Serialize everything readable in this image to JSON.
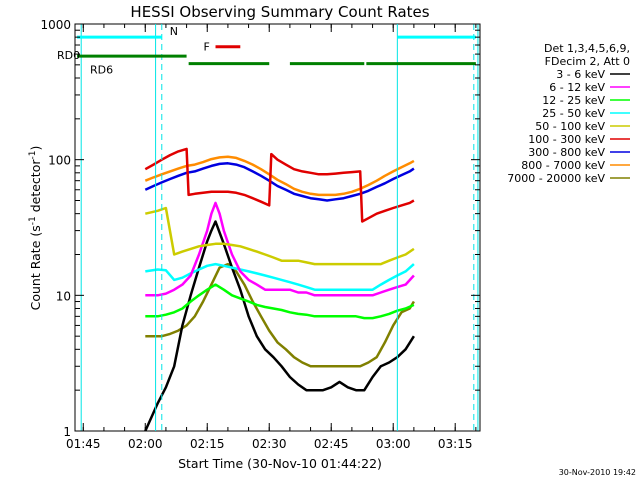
{
  "chart_data": {
    "type": "line",
    "title": "HESSI Observing Summary Count Rates",
    "xlabel": "Start Time (30-Nov-10 01:44:22)",
    "ylabel": "Count Rate (s",
    "ylabel_sup1": "-1",
    "ylabel_mid": " detector",
    "ylabel_sup2": "-1",
    "ylabel_end": ")",
    "y_scale": "log",
    "ylim": [
      1,
      1000
    ],
    "xlim_minutes": [
      -2,
      96
    ],
    "x_ticks": [
      {
        "label": "01:45",
        "minutes": 0
      },
      {
        "label": "02:00",
        "minutes": 15
      },
      {
        "label": "02:15",
        "minutes": 30
      },
      {
        "label": "02:30",
        "minutes": 45
      },
      {
        "label": "02:45",
        "minutes": 60
      },
      {
        "label": "03:00",
        "minutes": 75
      },
      {
        "label": "03:15",
        "minutes": 90
      }
    ],
    "y_ticks": [
      {
        "label": "1",
        "value": 1
      },
      {
        "label": "10",
        "value": 10
      },
      {
        "label": "100",
        "value": 100
      },
      {
        "label": "1000",
        "value": 1000
      }
    ],
    "legend_header": [
      "Det 1,3,4,5,6,9,",
      "FDecim 2, Att 0"
    ],
    "legend_placement": "right",
    "timestamp": "30-Nov-2010 19:42",
    "annotations": {
      "night": {
        "label": "N",
        "color": "#00ffff",
        "segments": [
          [
            -1.5,
            19
          ],
          [
            76,
            95
          ]
        ],
        "y": 800
      },
      "flare": {
        "label": "F",
        "color": "#e00000",
        "segments": [
          [
            32,
            38
          ]
        ],
        "y": 680
      },
      "rd0": {
        "label": "RD0",
        "color": "#008000",
        "segments": [
          [
            -1.5,
            25
          ]
        ],
        "y": 580
      },
      "rd6": {
        "label": "RD6",
        "color": "#008000",
        "segments": [
          [
            25.5,
            45
          ],
          [
            50,
            68
          ],
          [
            68.5,
            95
          ]
        ],
        "y": 510
      },
      "vlines_cyan": [
        -0.5,
        17.5,
        76,
        95.5
      ],
      "vlines_dash": [
        19,
        94.5
      ]
    },
    "series": [
      {
        "name": "3 - 6 keV",
        "color": "#000000",
        "x": [
          15,
          18,
          20,
          22,
          24,
          26,
          28,
          30,
          31,
          32,
          33,
          34,
          36,
          38,
          40,
          42,
          44,
          46,
          48,
          50,
          52,
          54,
          56,
          58,
          60,
          62,
          64,
          66,
          68,
          70,
          72,
          74,
          76,
          78,
          80
        ],
        "y": [
          1,
          1.6,
          2.1,
          3,
          6,
          10,
          16,
          25,
          30,
          35,
          29,
          24,
          16,
          11,
          7,
          5,
          4,
          3.5,
          3,
          2.5,
          2.2,
          2,
          2,
          2,
          2.1,
          2.3,
          2.1,
          2,
          2,
          2.5,
          3,
          3.2,
          3.5,
          4,
          5
        ]
      },
      {
        "name": "6 - 12 keV",
        "color": "#ff00ff",
        "x": [
          15,
          18,
          20,
          22,
          24,
          26,
          28,
          30,
          31,
          32,
          33,
          34,
          36,
          38,
          40,
          42,
          44,
          46,
          48,
          50,
          52,
          54,
          56,
          58,
          60,
          62,
          64,
          66,
          68,
          70,
          72,
          74,
          76,
          78,
          80
        ],
        "y": [
          10,
          10,
          10.3,
          11,
          12,
          14,
          20,
          30,
          40,
          48,
          40,
          30,
          20,
          15,
          13,
          12,
          11,
          11,
          11,
          11,
          10.5,
          10.5,
          10,
          10,
          10,
          10,
          10,
          10,
          10,
          10,
          10.5,
          11,
          11.5,
          12,
          14
        ]
      },
      {
        "name": "12 - 25 keV",
        "color": "#00ff00",
        "x": [
          15,
          18,
          20,
          22,
          24,
          26,
          28,
          30,
          32,
          34,
          36,
          38,
          40,
          42,
          44,
          46,
          48,
          50,
          52,
          54,
          56,
          58,
          60,
          62,
          64,
          66,
          68,
          70,
          72,
          74,
          76,
          78,
          80
        ],
        "y": [
          7,
          7,
          7.2,
          7.5,
          8,
          9,
          10,
          11,
          12,
          11,
          10,
          9.5,
          9,
          8.5,
          8.2,
          8,
          7.8,
          7.5,
          7.3,
          7.2,
          7,
          7,
          7,
          7,
          7,
          7,
          6.8,
          6.8,
          7,
          7.3,
          7.7,
          8,
          8.5
        ]
      },
      {
        "name": "25 - 50 keV",
        "color": "#00ffff",
        "x": [
          15,
          18,
          20,
          22,
          24,
          26,
          28,
          30,
          32,
          34,
          36,
          38,
          40,
          42,
          44,
          46,
          48,
          50,
          52,
          54,
          56,
          58,
          60,
          62,
          64,
          66,
          68,
          70,
          72,
          74,
          76,
          78,
          80
        ],
        "y": [
          15,
          15.5,
          15.3,
          13,
          13.5,
          14.5,
          15.5,
          16.5,
          17,
          16.5,
          16,
          15.5,
          15,
          14.5,
          14,
          13.5,
          13,
          12.5,
          12,
          11.5,
          11,
          11,
          11,
          11,
          11,
          11,
          11,
          11,
          12,
          13,
          14,
          15,
          17
        ]
      },
      {
        "name": "50 - 100 keV",
        "color": "#cccc00",
        "x": [
          15,
          18,
          20,
          22,
          24,
          26,
          28,
          30,
          32,
          34,
          36,
          38,
          40,
          42,
          44,
          46,
          48,
          50,
          52,
          54,
          56,
          58,
          60,
          62,
          64,
          66,
          68,
          70,
          72,
          74,
          76,
          78,
          80
        ],
        "y": [
          40,
          42,
          44,
          20,
          21,
          22,
          23,
          23.5,
          24,
          24,
          23.5,
          23,
          22,
          21,
          20,
          19,
          18,
          18,
          18,
          17.5,
          17,
          17,
          17,
          17,
          17,
          17,
          17,
          17,
          17,
          18,
          19,
          20,
          22
        ]
      },
      {
        "name": "100 - 300 keV",
        "color": "#e00000",
        "x": [
          15,
          17,
          19,
          21,
          23,
          25,
          25.5,
          27,
          29,
          31,
          33,
          35,
          37,
          39,
          41,
          43,
          45,
          45.5,
          47,
          49,
          51,
          53,
          55,
          57,
          59,
          61,
          63,
          65,
          67,
          67.5,
          69,
          71,
          73,
          75,
          77,
          79,
          80
        ],
        "y": [
          85,
          92,
          100,
          108,
          115,
          120,
          55,
          56,
          57,
          58,
          58,
          58,
          57,
          55,
          52,
          49,
          46,
          110,
          100,
          92,
          85,
          82,
          80,
          78,
          78,
          79,
          80,
          81,
          82,
          35,
          37,
          40,
          42,
          44,
          46,
          48,
          50
        ]
      },
      {
        "name": "300 - 800 keV",
        "color": "#0000e0",
        "x": [
          15,
          17,
          19,
          21,
          23,
          25,
          27,
          29,
          31,
          33,
          35,
          37,
          39,
          41,
          43,
          45,
          47,
          49,
          51,
          53,
          55,
          57,
          59,
          61,
          63,
          65,
          67,
          69,
          71,
          73,
          75,
          77,
          79,
          80
        ],
        "y": [
          60,
          64,
          68,
          72,
          76,
          80,
          82,
          86,
          90,
          93,
          94,
          92,
          88,
          82,
          76,
          70,
          64,
          60,
          56,
          54,
          52,
          51,
          50,
          51,
          52,
          54,
          56,
          59,
          63,
          67,
          72,
          77,
          82,
          86
        ]
      },
      {
        "name": "800 - 7000 keV",
        "color": "#ff8c00",
        "x": [
          15,
          17,
          19,
          21,
          23,
          25,
          27,
          29,
          31,
          33,
          35,
          37,
          39,
          41,
          43,
          45,
          47,
          49,
          51,
          53,
          55,
          57,
          59,
          61,
          63,
          65,
          67,
          69,
          71,
          73,
          75,
          77,
          79,
          80
        ],
        "y": [
          70,
          74,
          78,
          82,
          86,
          90,
          92,
          96,
          101,
          104,
          105,
          103,
          98,
          92,
          85,
          78,
          71,
          66,
          61,
          58,
          56,
          55,
          55,
          55,
          56,
          58,
          61,
          65,
          70,
          76,
          82,
          88,
          94,
          98
        ]
      },
      {
        "name": "7000 - 20000 keV",
        "color": "#808000",
        "x": [
          15,
          17,
          19,
          21,
          23,
          25,
          27,
          29,
          31,
          33,
          35,
          37,
          39,
          41,
          43,
          45,
          47,
          49,
          51,
          53,
          55,
          57,
          59,
          61,
          63,
          65,
          67,
          69,
          71,
          73,
          75,
          77,
          79,
          80
        ],
        "y": [
          5,
          5,
          5,
          5.2,
          5.5,
          6,
          7,
          9,
          12,
          16,
          17,
          15,
          12,
          9,
          7,
          5.5,
          4.5,
          4,
          3.5,
          3.2,
          3,
          3,
          3,
          3,
          3,
          3,
          3,
          3.2,
          3.5,
          4.5,
          6,
          7.5,
          8,
          9
        ]
      }
    ]
  }
}
